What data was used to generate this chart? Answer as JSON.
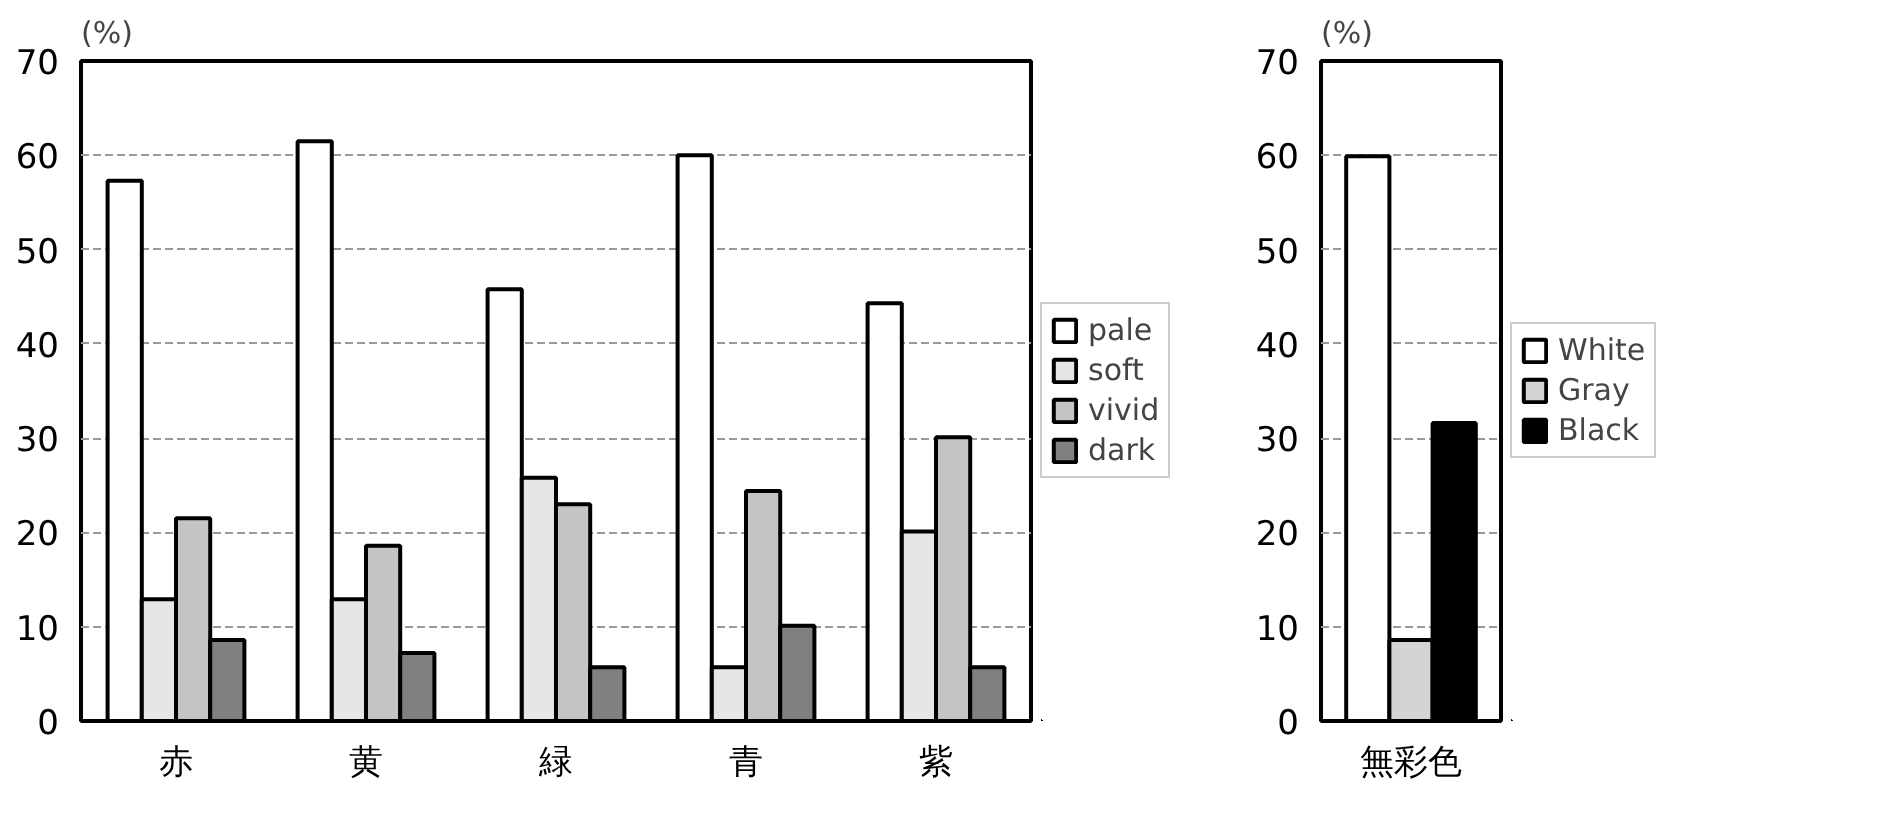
{
  "chart_data": [
    {
      "type": "bar",
      "ylabel": "(%)",
      "categories": [
        "赤",
        "黄",
        "緑",
        "青",
        "紫"
      ],
      "ylim": [
        0,
        70
      ],
      "yticks": [
        0,
        10,
        20,
        30,
        40,
        50,
        60,
        70
      ],
      "grid": "y",
      "legend": "right",
      "series": [
        {
          "name": "pale",
          "color": "#ffffff",
          "values": [
            57.3,
            61.5,
            45.8,
            60.0,
            44.3
          ]
        },
        {
          "name": "soft",
          "color": "#e6e6e6",
          "values": [
            12.9,
            12.9,
            25.8,
            5.7,
            20.1
          ]
        },
        {
          "name": "vivid",
          "color": "#c4c4c4",
          "values": [
            21.5,
            18.6,
            23.0,
            24.4,
            30.1
          ]
        },
        {
          "name": "dark",
          "color": "#808080",
          "values": [
            8.6,
            7.2,
            5.7,
            10.1,
            5.7
          ]
        }
      ]
    },
    {
      "type": "bar",
      "ylabel": "(%)",
      "categories": [
        "無彩色"
      ],
      "ylim": [
        0,
        70
      ],
      "yticks": [
        0,
        10,
        20,
        30,
        40,
        50,
        60,
        70
      ],
      "grid": "y",
      "legend": "right",
      "series": [
        {
          "name": "White",
          "color": "#ffffff",
          "values": [
            59.9
          ]
        },
        {
          "name": "Gray",
          "color": "#d4d4d4",
          "values": [
            8.6
          ]
        },
        {
          "name": "Black",
          "color": "#000000",
          "values": [
            31.6
          ]
        }
      ]
    }
  ]
}
